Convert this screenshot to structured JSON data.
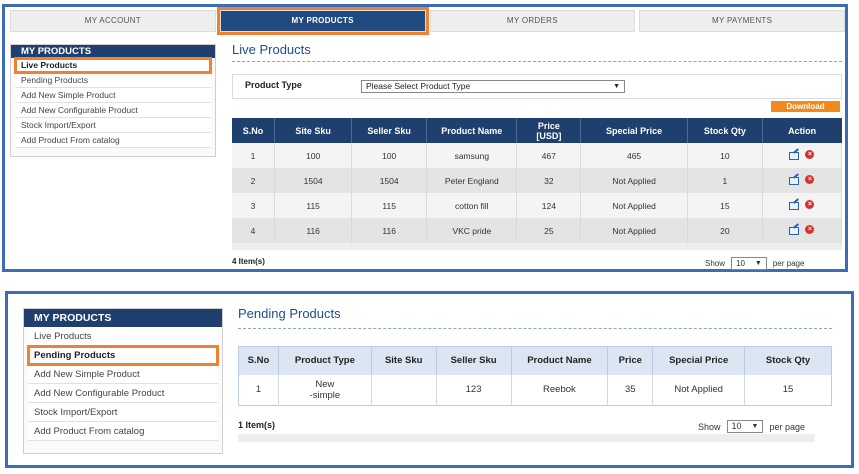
{
  "panel1": {
    "topnav": [
      "MY ACCOUNT",
      "MY PRODUCTS",
      "MY ORDERS",
      "MY PAYMENTS"
    ],
    "sidebar": {
      "title": "MY PRODUCTS",
      "items": [
        "Live Products",
        "Pending Products",
        "Add New Simple Product",
        "Add New Configurable Product",
        "Stock Import/Export",
        "Add Product From catalog"
      ]
    },
    "title": "Live Products",
    "filter": {
      "label": "Product Type",
      "selected": "Please Select Product Type"
    },
    "download_label": "Download",
    "table": {
      "headers": [
        "S.No",
        "Site Sku",
        "Seller Sku",
        "Product Name",
        "Price\n[USD]",
        "Special Price",
        "Stock Qty",
        "Action"
      ],
      "rows": [
        [
          "1",
          "100",
          "100",
          "samsung",
          "467",
          "465",
          "10"
        ],
        [
          "2",
          "1504",
          "1504",
          "Peter England",
          "32",
          "Not Applied",
          "1"
        ],
        [
          "3",
          "115",
          "115",
          "cotton fill",
          "124",
          "Not Applied",
          "15"
        ],
        [
          "4",
          "116",
          "116",
          "VKC pride",
          "25",
          "Not Applied",
          "20"
        ]
      ]
    },
    "footer": {
      "count": "4 Item(s)",
      "show": "Show",
      "per_page_value": "10",
      "per_page": "per page"
    }
  },
  "panel2": {
    "sidebar": {
      "title": "MY PRODUCTS",
      "items": [
        "Live Products",
        "Pending Products",
        "Add New Simple Product",
        "Add New Configurable Product",
        "Stock Import/Export",
        "Add Product From catalog"
      ]
    },
    "title": "Pending Products",
    "table": {
      "headers": [
        "S.No",
        "Product Type",
        "Site Sku",
        "Seller Sku",
        "Product Name",
        "Price",
        "Special Price",
        "Stock Qty"
      ],
      "rows": [
        [
          "1",
          "New\n-simple",
          "",
          "123",
          "Reebok",
          "35",
          "Not Applied",
          "15"
        ]
      ]
    },
    "footer": {
      "count": "1 Item(s)",
      "show": "Show",
      "per_page_value": "10",
      "per_page": "per page"
    }
  },
  "colors": {
    "nav_active": "#204a80",
    "header": "#1f3f6e",
    "highlight": "#f0822f",
    "frame": "#3c6db4",
    "download": "#f08a1c"
  },
  "icons": [
    "edit-icon",
    "delete-icon",
    "chevron-down-icon"
  ]
}
